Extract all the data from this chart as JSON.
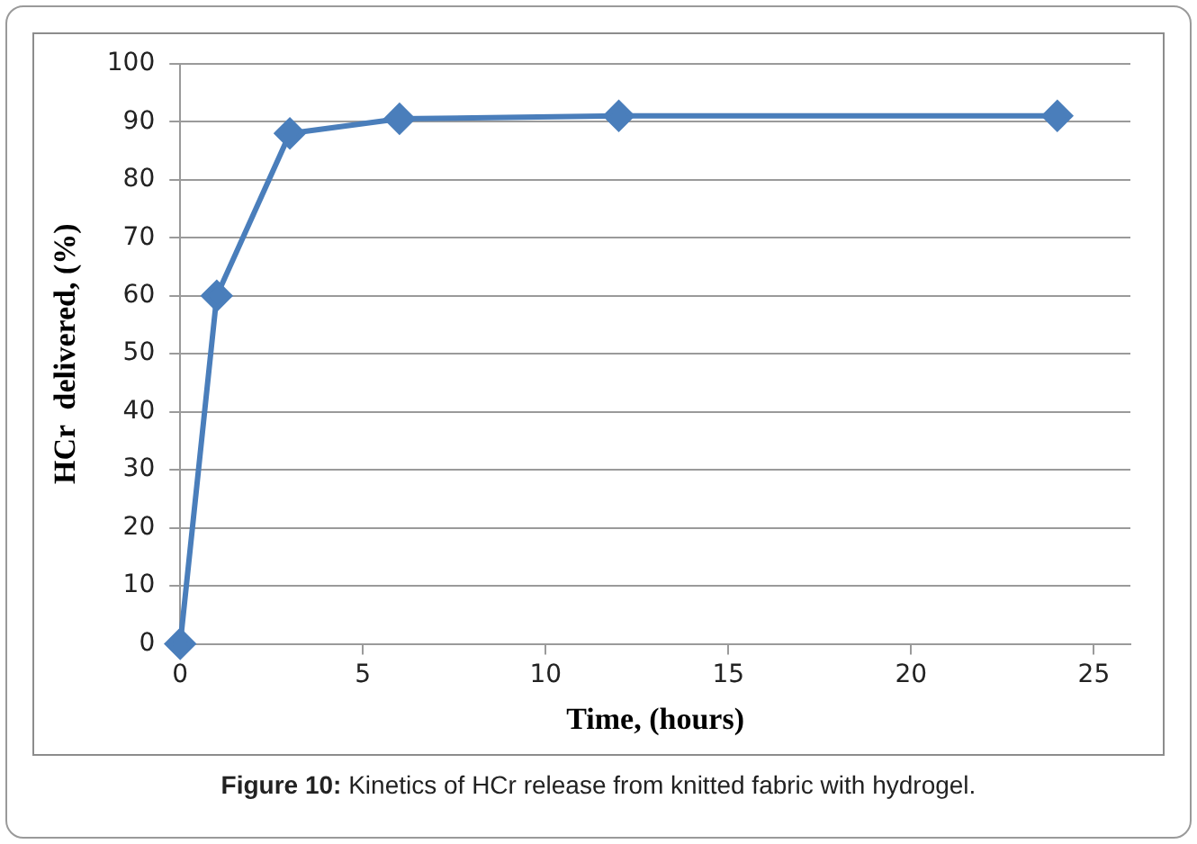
{
  "chart_data": {
    "type": "line",
    "xlabel": "Time, (hours)",
    "ylabel": "HCr  delivered, (%)",
    "x": [
      0,
      1,
      3,
      6,
      12,
      24
    ],
    "series": [
      {
        "color": "#4a7ebb",
        "values": [
          0,
          60,
          88,
          90.5,
          91,
          91
        ]
      }
    ],
    "xlim": [
      0,
      26
    ],
    "xticks": [
      0,
      5,
      10,
      15,
      20,
      25
    ],
    "ylim": [
      0,
      100
    ],
    "yticks": [
      0,
      10,
      20,
      30,
      40,
      50,
      60,
      70,
      80,
      90,
      100
    ],
    "grid": "y",
    "legend": false,
    "marker": "diamond",
    "line_style": "solid",
    "annotations": [
      "Figure 10: Kinetics of HCr release from knitted fabric with hydrogel."
    ]
  }
}
